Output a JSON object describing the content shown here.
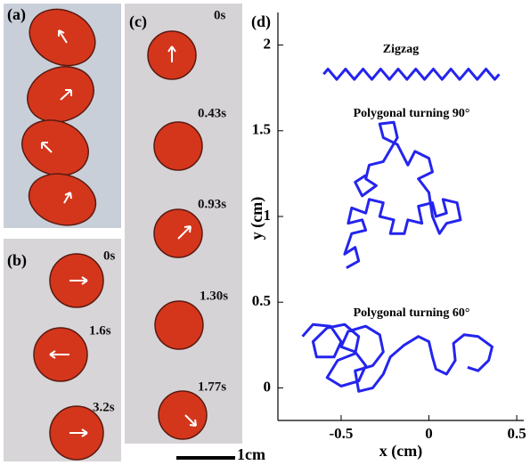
{
  "panels": {
    "a": {
      "label": "(a)"
    },
    "b": {
      "label": "(b)",
      "times": [
        "0s",
        "1.6s",
        "3.2s"
      ]
    },
    "c": {
      "label": "(c)",
      "times": [
        "0s",
        "0.43s",
        "0.93s",
        "1.30s",
        "1.77s"
      ]
    },
    "scale_bar": "1cm"
  },
  "chart_data": {
    "type": "line",
    "panel_label": "(d)",
    "x_label": "x (cm)",
    "y_label": "y (cm)",
    "annotations": [
      "Zigzag",
      "Polygonal turning 90°",
      "Polygonal turning 60°"
    ],
    "xlim": [
      -0.86,
      0.54
    ],
    "ylim": [
      -0.19,
      2.19
    ],
    "xticks": [
      -0.5,
      0,
      0.5
    ],
    "yticks": [
      0,
      0.5,
      1,
      1.5,
      2
    ],
    "series": [
      {
        "color": "#2424ee",
        "x": [
          -0.6,
          -0.575,
          -0.55,
          -0.525,
          -0.5,
          -0.475,
          -0.45,
          -0.425,
          -0.4,
          -0.375,
          -0.35,
          -0.325,
          -0.3,
          -0.275,
          -0.25,
          -0.225,
          -0.2,
          -0.175,
          -0.15,
          -0.125,
          -0.1,
          -0.075,
          -0.05,
          -0.025,
          0,
          0.025,
          0.05,
          0.075,
          0.1,
          0.125,
          0.15,
          0.175,
          0.2,
          0.225,
          0.25,
          0.275,
          0.3,
          0.325,
          0.35,
          0.375,
          0.4
        ],
        "y": [
          1.83,
          1.86,
          1.83,
          1.8,
          1.83,
          1.86,
          1.83,
          1.8,
          1.83,
          1.86,
          1.83,
          1.8,
          1.83,
          1.86,
          1.83,
          1.8,
          1.83,
          1.86,
          1.83,
          1.8,
          1.83,
          1.86,
          1.83,
          1.8,
          1.83,
          1.86,
          1.83,
          1.8,
          1.83,
          1.86,
          1.83,
          1.8,
          1.83,
          1.86,
          1.83,
          1.8,
          1.83,
          1.86,
          1.83,
          1.8,
          1.83
        ]
      },
      {
        "color": "#2424ee",
        "x": [
          -0.47,
          -0.4,
          -0.42,
          -0.48,
          -0.44,
          -0.36,
          -0.38,
          -0.46,
          -0.44,
          -0.36,
          -0.34,
          -0.26,
          -0.28,
          -0.2,
          -0.22,
          -0.14,
          -0.12,
          -0.04,
          -0.06,
          0.02,
          0.04,
          0.1,
          0.08,
          0.16,
          0.18,
          0.1,
          0.06,
          0.02,
          0,
          -0.06,
          0.02,
          0,
          -0.08,
          -0.12,
          -0.18,
          -0.26,
          -0.28,
          -0.2,
          -0.18,
          -0.26,
          -0.34,
          -0.36,
          -0.3,
          -0.38,
          -0.42,
          -0.36
        ],
        "y": [
          0.7,
          0.74,
          0.82,
          0.78,
          0.9,
          0.92,
          0.98,
          0.96,
          1.05,
          1.02,
          1.1,
          1.08,
          1,
          0.98,
          0.9,
          0.9,
          0.98,
          0.96,
          1.06,
          1.08,
          1,
          1.02,
          1.1,
          1.08,
          0.98,
          0.96,
          0.9,
          1,
          1.14,
          1.22,
          1.26,
          1.34,
          1.38,
          1.3,
          1.42,
          1.46,
          1.54,
          1.55,
          1.46,
          1.32,
          1.3,
          1.22,
          1.18,
          1.12,
          1.2,
          1.24
        ]
      },
      {
        "color": "#2424ee",
        "x": [
          -0.72,
          -0.66,
          -0.56,
          -0.5,
          -0.54,
          -0.64,
          -0.66,
          -0.58,
          -0.48,
          -0.4,
          -0.42,
          -0.52,
          -0.58,
          -0.5,
          -0.4,
          -0.36,
          -0.42,
          -0.5,
          -0.46,
          -0.36,
          -0.28,
          -0.26,
          -0.32,
          -0.42,
          -0.4,
          -0.32,
          -0.26,
          -0.22,
          -0.14,
          -0.06,
          0,
          0.02,
          0.04,
          0.1,
          0.15,
          0.14,
          0.2,
          0.28,
          0.36,
          0.34,
          0.28,
          0.22
        ],
        "y": [
          0.3,
          0.37,
          0.36,
          0.27,
          0.18,
          0.18,
          0.27,
          0.35,
          0.37,
          0.3,
          0.2,
          0.16,
          0.06,
          0.01,
          0.04,
          0.13,
          0.21,
          0.24,
          0.33,
          0.36,
          0.31,
          0.21,
          0.13,
          0.1,
          -0.02,
          0,
          0.08,
          0.18,
          0.25,
          0.3,
          0.27,
          0.18,
          0.11,
          0.08,
          0.16,
          0.26,
          0.31,
          0.3,
          0.24,
          0.16,
          0.1,
          0.12
        ]
      }
    ]
  }
}
